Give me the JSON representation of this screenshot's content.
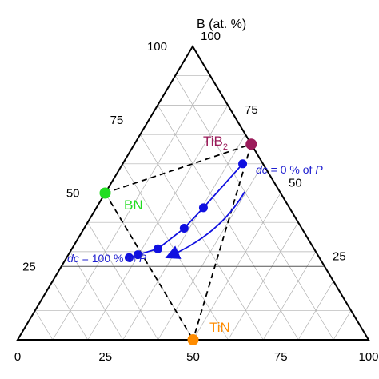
{
  "chart_data": {
    "type": "ternary",
    "axis_title": "B (at. %)",
    "b_ticks": [
      "0",
      "25",
      "50",
      "75",
      "100"
    ],
    "n_ticks": [
      "0",
      "25",
      "50",
      "75",
      "100"
    ],
    "right_ticks": [
      "0",
      "25",
      "50",
      "75",
      "100"
    ],
    "grid": true,
    "points": [
      {
        "name": "TiB2",
        "b": 66.7,
        "ti": 33.3,
        "n": 0,
        "color": "#9b1b5a"
      },
      {
        "name": "BN",
        "b": 50,
        "ti": 0,
        "n": 50,
        "color": "#22dd22"
      },
      {
        "name": "TiN",
        "b": 0,
        "ti": 50,
        "n": 50,
        "color": "#ff8c00"
      }
    ],
    "labels": {
      "tib2_main": "TiB",
      "tib2_sub": "2",
      "bn": "BN",
      "tin": "TiN",
      "ann_top_pre": "dc",
      "ann_top_mid": " = 0 % of ",
      "ann_top_p": "P",
      "ann_bottom_pre": "dc",
      "ann_bottom_mid": " = 100 % of ",
      "ann_bottom_p": "P"
    },
    "series": [
      {
        "values": [
          {
            "b": 60,
            "ti": 34.2,
            "n": 5.8
          },
          {
            "b": 45,
            "ti": 30.5,
            "n": 24.5
          },
          {
            "b": 38,
            "ti": 28.5,
            "n": 33.5
          },
          {
            "b": 31,
            "ti": 24.5,
            "n": 44.5
          },
          {
            "b": 29,
            "ti": 19.8,
            "n": 51.2
          },
          {
            "b": 28,
            "ti": 17.8,
            "n": 54.2
          }
        ],
        "color": "#1010e0"
      }
    ],
    "colors": {
      "series": "#1010e0",
      "grid": "#b0b0b0",
      "axis": "#000000"
    }
  }
}
